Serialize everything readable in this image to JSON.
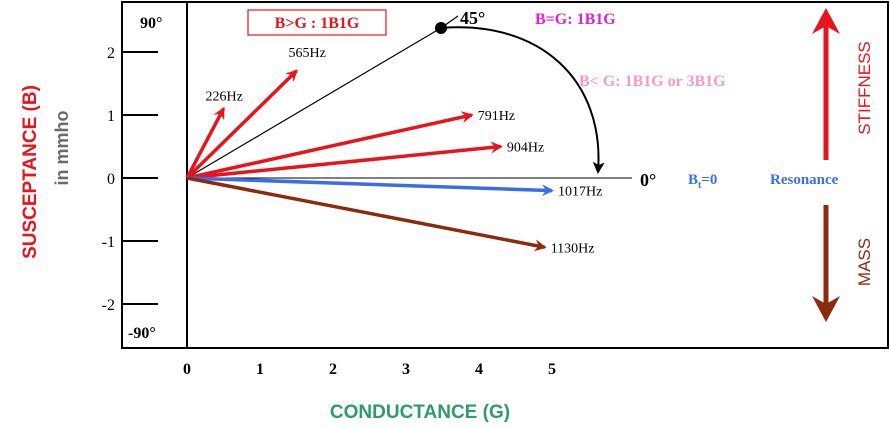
{
  "y_axis": {
    "title": "SUSCEPTANCE (B)",
    "unit": "in mmho",
    "ticks": [
      "2",
      "1",
      "0",
      "-1",
      "-2"
    ],
    "top_angle": "90°",
    "bottom_angle": "-90°"
  },
  "x_axis": {
    "title": "CONDUCTANCE (G)",
    "ticks": [
      "0",
      "1",
      "2",
      "3",
      "4",
      "5"
    ],
    "zero_angle": "0°"
  },
  "legend": {
    "b_greater_g": "B>G : 1B1G",
    "b_equal_g": "B=G: 1B1G",
    "b_less_g": "B< G: 1B1G or 3B1G",
    "angle_45": "45°",
    "bt_zero": "Bt=0",
    "resonance": "Resonance"
  },
  "side": {
    "stiffness": "STIFFNESS",
    "mass": "MASS"
  },
  "colors": {
    "stiffness_red": "#e8141c",
    "mass_brown": "#8b2a0d",
    "resonance_blue": "#3a6ee8",
    "axis_title_red": "#e8141c",
    "axis_title_gray": "#6b6b6b",
    "x_title_green": "#2f9a6a",
    "b_equal_magenta": "#e020d0",
    "b_less_pink": "#f59ac4"
  },
  "chart_data": {
    "type": "vector",
    "xlim": [
      0,
      5.6
    ],
    "ylim": [
      -2.5,
      2.5
    ],
    "vectors": [
      {
        "label": "226Hz",
        "G": 0.5,
        "B": 1.1,
        "color": "stiffness"
      },
      {
        "label": "565Hz",
        "G": 1.5,
        "B": 1.7,
        "color": "stiffness"
      },
      {
        "label": "791Hz",
        "G": 3.9,
        "B": 1.0,
        "color": "stiffness"
      },
      {
        "label": "904Hz",
        "G": 4.3,
        "B": 0.5,
        "color": "stiffness"
      },
      {
        "label": "1017Hz",
        "G": 5.0,
        "B": -0.2,
        "color": "resonance"
      },
      {
        "label": "1130Hz",
        "G": 4.9,
        "B": -1.1,
        "color": "mass"
      }
    ]
  }
}
